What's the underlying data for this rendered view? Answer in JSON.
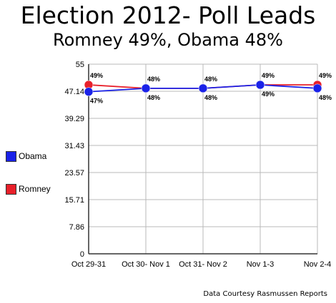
{
  "chart_data": {
    "type": "line",
    "title": "Election 2012- Poll Leads",
    "subtitle": "Romney 49%, Obama 48%",
    "categories": [
      "Oct 29-31",
      "Oct 30- Nov 1",
      "Oct 31- Nov 2",
      "Nov 1-3",
      "Nov 2-4"
    ],
    "yticks": [
      "0",
      "7.86",
      "15.71",
      "23.57",
      "31.43",
      "39.29",
      "47.14",
      "55"
    ],
    "ylim": [
      0,
      55
    ],
    "grid": true,
    "legend_position": "left",
    "series": [
      {
        "name": "Obama",
        "color": "#1a22e8",
        "values": [
          47,
          48,
          48,
          49,
          48
        ],
        "labels": [
          "47%",
          "48%",
          "48%",
          "49%",
          "48%"
        ]
      },
      {
        "name": "Romney",
        "color": "#e8202a",
        "values": [
          49,
          48,
          48,
          49,
          49
        ],
        "labels": [
          "49%",
          "48%",
          "48%",
          "49%",
          "49%"
        ]
      }
    ]
  },
  "credit": "Data Courtesy Rasmussen Reports"
}
